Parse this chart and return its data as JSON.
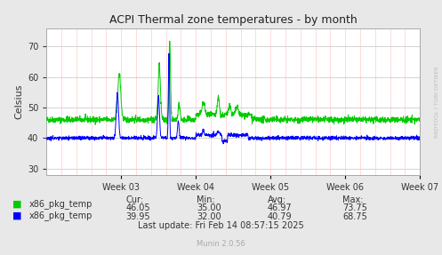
{
  "title": "ACPI Thermal zone temperatures - by month",
  "ylabel": "Celsius",
  "watermark": "RRDTOOL / TOBI OETIKER",
  "munin_version": "Munin 2.0.56",
  "last_update": "Last update: Fri Feb 14 08:57:15 2025",
  "ylim": [
    28,
    76
  ],
  "yticks": [
    30,
    40,
    50,
    60,
    70
  ],
  "week_labels": [
    "Week 03",
    "Week 04",
    "Week 05",
    "Week 06",
    "Week 07"
  ],
  "background_color": "#e8e8e8",
  "plot_bg_color": "#ffffff",
  "line1_color": "#00cc00",
  "line2_color": "#0000ff",
  "legend": [
    {
      "label": "x86_pkg_temp",
      "color": "#00cc00"
    },
    {
      "label": "x86_pkg_temp",
      "color": "#0000ff"
    }
  ],
  "stats": {
    "headers": [
      "Cur:",
      "Min:",
      "Avg:",
      "Max:"
    ],
    "row1": [
      "46.05",
      "35.00",
      "46.97",
      "73.75"
    ],
    "row2": [
      "39.95",
      "32.00",
      "40.79",
      "68.75"
    ]
  }
}
